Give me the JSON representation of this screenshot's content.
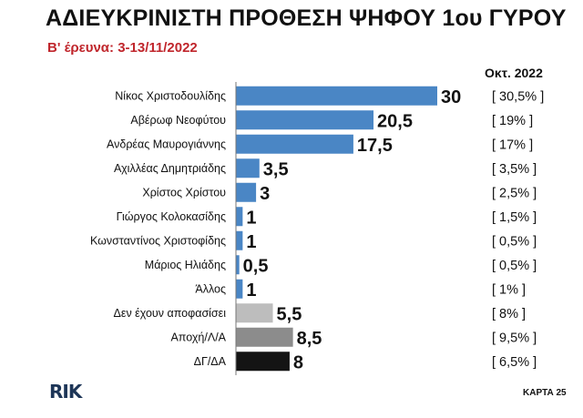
{
  "title": "ΑΔΙΕΥΚΡΙΝΙΣΤΗ ΠΡΟΘΕΣΗ ΨΗΦΟΥ 1ου ΓΥΡΟΥ",
  "subtitle": "Β' έρευνα: 3-13/11/2022",
  "compare_header": "Οκτ. 2022",
  "logo_text": "RIK",
  "card_label": "ΚΑΡΤΑ 25",
  "colors": {
    "blue": "#4a86c5",
    "light_gray": "#bdbdbd",
    "mid_gray": "#8c8c8c",
    "black": "#141414",
    "subtitle_red": "#c0262c"
  },
  "chart_data": {
    "type": "bar",
    "orientation": "horizontal",
    "categories": [
      "Νίκος Χριστοδουλίδης",
      "Αβέρωφ Νεοφύτου",
      "Ανδρέας Μαυρογιάννης",
      "Αχιλλέας Δημητριάδης",
      "Χρίστος Χρίστου",
      "Γιώργος Κολοκασίδης",
      "Κωνσταντίνος Χριστοφίδης",
      "Μάριος Ηλιάδης",
      "Άλλος",
      "Δεν έχουν αποφασίσει",
      "Αποχή/Λ/Α",
      "ΔΓ/ΔΑ"
    ],
    "values": [
      30,
      20.5,
      17.5,
      3.5,
      3,
      1,
      1,
      0.5,
      1,
      5.5,
      8.5,
      8
    ],
    "value_labels": [
      "30",
      "20,5",
      "17,5",
      "3,5",
      "3",
      "1",
      "1",
      "0,5",
      "1",
      "5,5",
      "8,5",
      "8"
    ],
    "bar_colors": [
      "blue",
      "blue",
      "blue",
      "blue",
      "blue",
      "blue",
      "blue",
      "blue",
      "blue",
      "light_gray",
      "mid_gray",
      "black"
    ],
    "previous_label": "Οκτ. 2022",
    "previous_values": [
      "[ 30,5% ]",
      "[ 19% ]",
      "[ 17% ]",
      "[ 3,5% ]",
      "[ 2,5% ]",
      "[ 1,5% ]",
      "[ 0,5% ]",
      "[ 0,5% ]",
      "[ 1% ]",
      "[ 8% ]",
      "[ 9,5% ]",
      "[ 6,5% ]"
    ],
    "xlim": [
      0,
      30
    ],
    "grid": false,
    "legend": "none"
  }
}
